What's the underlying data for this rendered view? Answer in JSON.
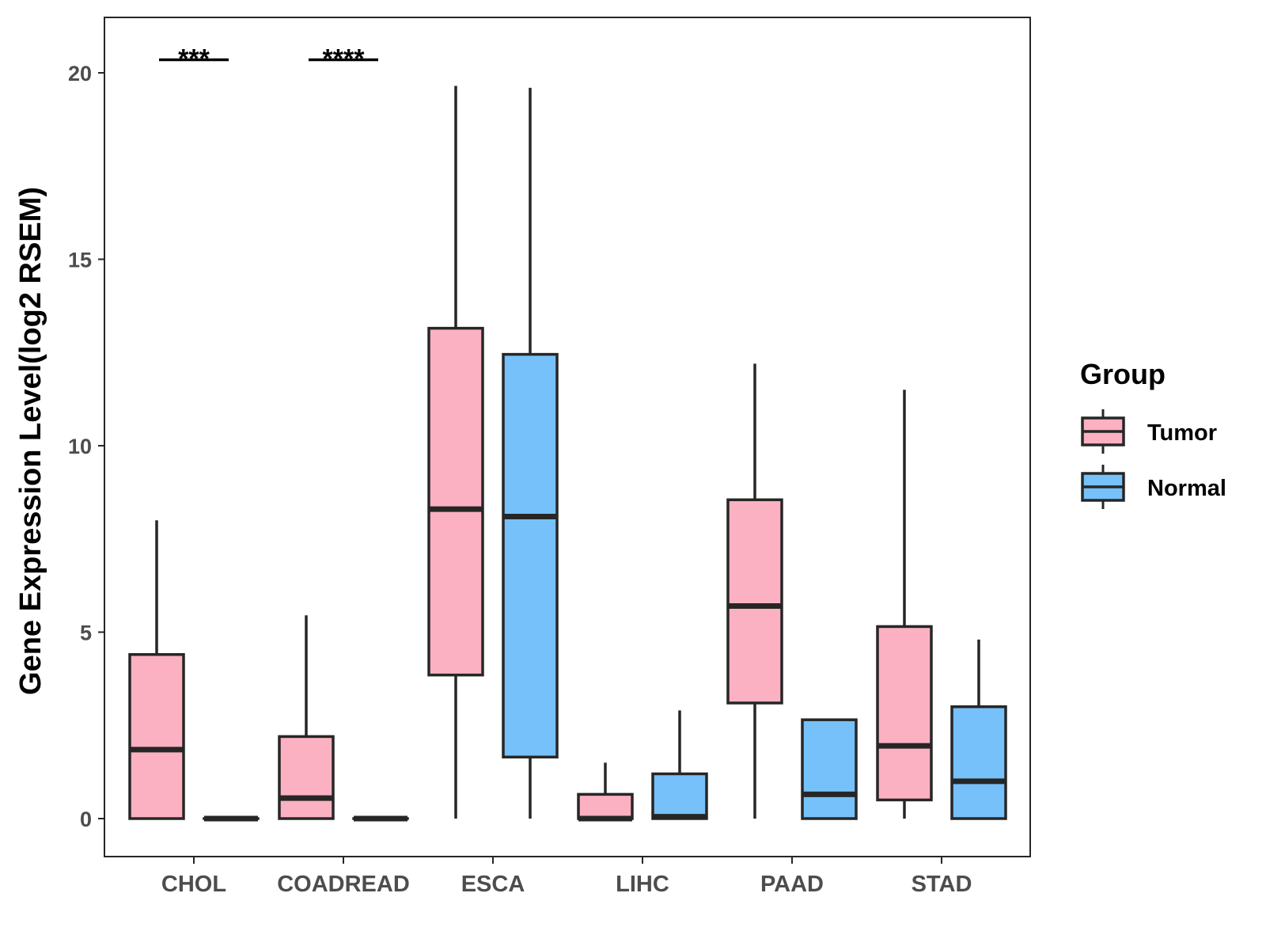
{
  "chart_data": {
    "type": "boxplot",
    "title": "",
    "xlabel": "",
    "ylabel": "Gene Expression Level(log2 RSEM)",
    "ylim": [
      -1,
      21.2
    ],
    "yticks": [
      0,
      5,
      10,
      15,
      20
    ],
    "categories": [
      "CHOL",
      "COADREAD",
      "ESCA",
      "LIHC",
      "PAAD",
      "STAD"
    ],
    "legend": {
      "title": "Group",
      "position": "right",
      "entries": [
        {
          "name": "Tumor",
          "color": "#FBB1C2"
        },
        {
          "name": "Normal",
          "color": "#76C1F9"
        }
      ]
    },
    "series": [
      {
        "name": "Tumor",
        "color": "#FBB1C2",
        "boxes": [
          {
            "category": "CHOL",
            "min": 0,
            "q1": 0,
            "median": 1.85,
            "q3": 4.4,
            "max": 8.0
          },
          {
            "category": "COADREAD",
            "min": 0,
            "q1": 0,
            "median": 0.55,
            "q3": 2.2,
            "max": 5.45
          },
          {
            "category": "ESCA",
            "min": 0,
            "q1": 3.85,
            "median": 8.3,
            "q3": 13.15,
            "max": 19.65
          },
          {
            "category": "LIHC",
            "min": 0,
            "q1": 0,
            "median": 0,
            "q3": 0.65,
            "max": 1.5
          },
          {
            "category": "PAAD",
            "min": 0,
            "q1": 3.1,
            "median": 5.7,
            "q3": 8.55,
            "max": 12.2
          },
          {
            "category": "STAD",
            "min": 0,
            "q1": 0.5,
            "median": 1.95,
            "q3": 5.15,
            "max": 11.5
          }
        ]
      },
      {
        "name": "Normal",
        "color": "#76C1F9",
        "boxes": [
          {
            "category": "CHOL",
            "min": 0,
            "q1": 0,
            "median": 0,
            "q3": 0,
            "max": 0
          },
          {
            "category": "COADREAD",
            "min": 0,
            "q1": 0,
            "median": 0,
            "q3": 0,
            "max": 0
          },
          {
            "category": "ESCA",
            "min": 0,
            "q1": 1.65,
            "median": 8.1,
            "q3": 12.45,
            "max": 19.6
          },
          {
            "category": "LIHC",
            "min": 0,
            "q1": 0,
            "median": 0.05,
            "q3": 1.2,
            "max": 2.9
          },
          {
            "category": "PAAD",
            "min": 0,
            "q1": 0,
            "median": 0.65,
            "q3": 2.65,
            "max": 2.65
          },
          {
            "category": "STAD",
            "min": 0,
            "q1": 0,
            "median": 1.0,
            "q3": 3.0,
            "max": 4.8
          }
        ]
      }
    ],
    "annotations": [
      {
        "category": "CHOL",
        "label": "***",
        "y": 20.35
      },
      {
        "category": "COADREAD",
        "label": "****",
        "y": 20.35
      }
    ],
    "grid": false
  }
}
